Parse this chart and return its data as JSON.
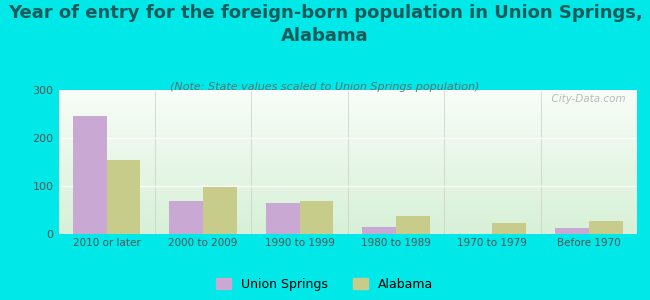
{
  "title": "Year of entry for the foreign-born population in Union Springs,\nAlabama",
  "subtitle": "(Note: State values scaled to Union Springs population)",
  "categories": [
    "2010 or later",
    "2000 to 2009",
    "1990 to 1999",
    "1980 to 1989",
    "1970 to 1979",
    "Before 1970"
  ],
  "union_springs": [
    245,
    68,
    65,
    15,
    0,
    12
  ],
  "alabama": [
    155,
    98,
    68,
    37,
    22,
    28
  ],
  "bar_color_us": "#c9a8d4",
  "bar_color_al": "#c8cc8a",
  "background_color": "#00e8e8",
  "ylim": [
    0,
    300
  ],
  "yticks": [
    0,
    100,
    200,
    300
  ],
  "bar_width": 0.35,
  "legend_us": "Union Springs",
  "legend_al": "Alabama",
  "title_fontsize": 13,
  "subtitle_fontsize": 8,
  "watermark": "  City-Data.com"
}
